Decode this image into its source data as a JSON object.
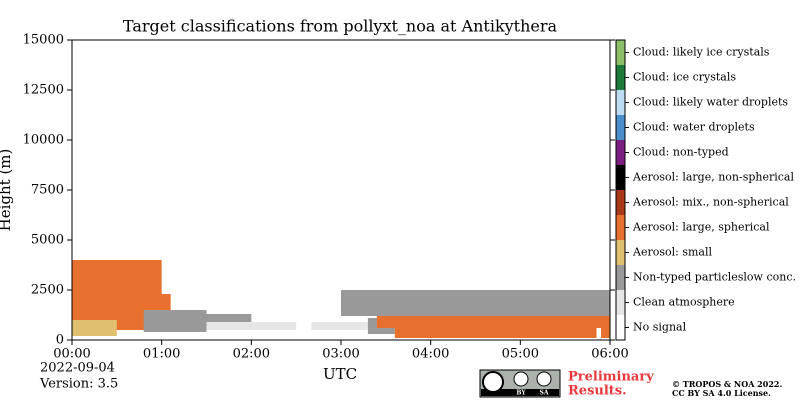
{
  "chart_data": {
    "type": "classification",
    "title": "Target classifications from pollyxt_noa at Antikythera",
    "ylabel": "Height (m)",
    "xlabel": "UTC",
    "ylim": [
      0,
      15000
    ],
    "yticks": [
      0,
      2500,
      5000,
      7500,
      10000,
      12500,
      15000
    ],
    "xlim": [
      0,
      6
    ],
    "xticks": [
      {
        "value": 0,
        "label": "00:00"
      },
      {
        "value": 1,
        "label": "01:00"
      },
      {
        "value": 2,
        "label": "02:00"
      },
      {
        "value": 3,
        "label": "03:00"
      },
      {
        "value": 4,
        "label": "04:00"
      },
      {
        "value": 5,
        "label": "05:00"
      },
      {
        "value": 6,
        "label": "06:00"
      }
    ],
    "classes": [
      {
        "name": "No signal",
        "color": "#ffffff"
      },
      {
        "name": "Clean atmosphere",
        "color": "#e6e6e6"
      },
      {
        "name": "Non-typed particleslow conc.",
        "color": "#999999"
      },
      {
        "name": "Aerosol: small",
        "color": "#e0c070"
      },
      {
        "name": "Aerosol: large, spherical",
        "color": "#e8702e"
      },
      {
        "name": "Aerosol: mix., non-spherical",
        "color": "#a8381a"
      },
      {
        "name": "Aerosol: large, non-spherical",
        "color": "#000000"
      },
      {
        "name": "Cloud: non-typed",
        "color": "#7a1f80"
      },
      {
        "name": "Cloud: water droplets",
        "color": "#4a8ecb"
      },
      {
        "name": "Cloud: likely water droplets",
        "color": "#bcdcf2"
      },
      {
        "name": "Cloud: ice crystals",
        "color": "#1e7a3a"
      },
      {
        "name": "Cloud: likely ice crystals",
        "color": "#8cbe6a"
      }
    ],
    "cells": [
      {
        "class": 4,
        "x": [
          0.0,
          1.0
        ],
        "y": [
          2300,
          4000
        ]
      },
      {
        "class": 4,
        "x": [
          0.0,
          1.1
        ],
        "y": [
          500,
          2300
        ]
      },
      {
        "class": 3,
        "x": [
          0.0,
          0.5
        ],
        "y": [
          200,
          1000
        ]
      },
      {
        "class": 2,
        "x": [
          0.8,
          1.5
        ],
        "y": [
          400,
          1500
        ]
      },
      {
        "class": 1,
        "x": [
          1.5,
          2.5
        ],
        "y": [
          500,
          900
        ]
      },
      {
        "class": 2,
        "x": [
          1.5,
          2.0
        ],
        "y": [
          900,
          1300
        ]
      },
      {
        "class": 1,
        "x": [
          2.67,
          3.3
        ],
        "y": [
          500,
          900
        ]
      },
      {
        "class": 2,
        "x": [
          3.0,
          6.0
        ],
        "y": [
          1200,
          2500
        ]
      },
      {
        "class": 2,
        "x": [
          3.3,
          3.6
        ],
        "y": [
          300,
          1100
        ]
      },
      {
        "class": 4,
        "x": [
          3.4,
          6.0
        ],
        "y": [
          600,
          1200
        ]
      },
      {
        "class": 4,
        "x": [
          3.6,
          5.85
        ],
        "y": [
          100,
          600
        ]
      },
      {
        "class": 4,
        "x": [
          5.9,
          6.0
        ],
        "y": [
          100,
          600
        ]
      }
    ],
    "date": "2022-09-04",
    "version": "Version: 3.5",
    "badge": [
      "BY",
      "SA"
    ],
    "notice": [
      "Preliminary",
      "Results."
    ],
    "copyright": [
      "© TROPOS & NOA 2022.",
      "CC BY SA 4.0 License."
    ]
  }
}
